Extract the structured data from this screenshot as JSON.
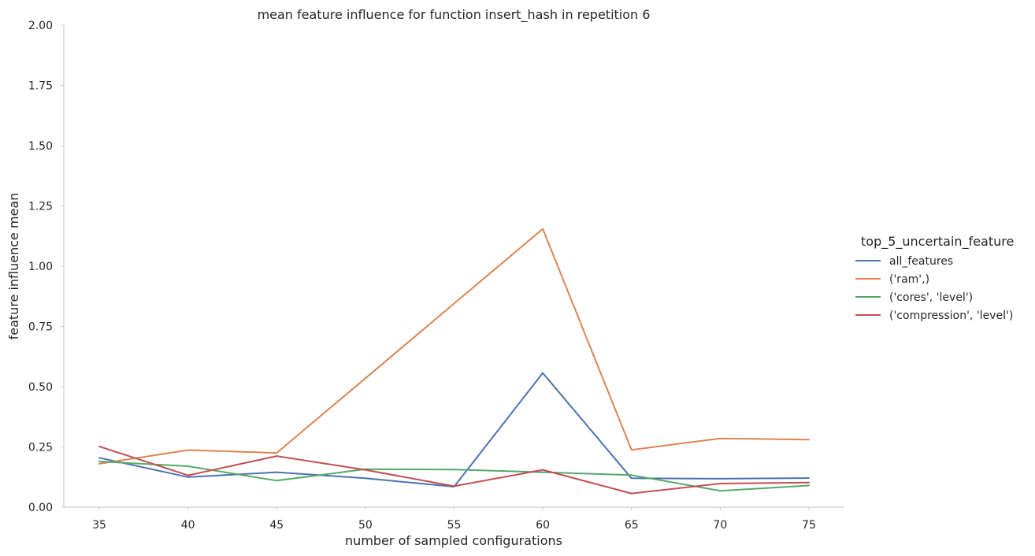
{
  "chart_data": {
    "type": "line",
    "title": "mean feature influence for function insert_hash in repetition 6",
    "xlabel": "number of sampled configurations",
    "ylabel": "feature influence mean",
    "x": [
      35,
      40,
      45,
      50,
      55,
      60,
      65,
      70,
      75
    ],
    "x_ticks": [
      "35",
      "40",
      "45",
      "50",
      "55",
      "60",
      "65",
      "70",
      "75"
    ],
    "y_ticks": [
      "0.00",
      "0.25",
      "0.50",
      "0.75",
      "1.00",
      "1.25",
      "1.50",
      "1.75",
      "2.00"
    ],
    "xlim": [
      33,
      77
    ],
    "ylim": [
      0,
      2.0
    ],
    "grid": false,
    "legend_title": "top_5_uncertain_feature",
    "legend_position": "right",
    "series": [
      {
        "name": "all_features",
        "color": "#4c72b0",
        "values": [
          0.205,
          0.125,
          0.145,
          0.12,
          0.085,
          0.557,
          0.12,
          0.118,
          0.121
        ]
      },
      {
        "name": "('ram',)",
        "color": "#dd8452",
        "values": [
          0.18,
          0.237,
          0.225,
          0.535,
          0.845,
          1.155,
          0.238,
          0.285,
          0.28
        ]
      },
      {
        "name": "('cores', 'level')",
        "color": "#55a868",
        "values": [
          0.19,
          0.17,
          0.11,
          0.158,
          0.156,
          0.145,
          0.133,
          0.068,
          0.09
        ]
      },
      {
        "name": "('compression', 'level')",
        "color": "#c44e52",
        "values": [
          0.252,
          0.132,
          0.212,
          0.155,
          0.087,
          0.155,
          0.057,
          0.098,
          0.102
        ]
      }
    ]
  }
}
